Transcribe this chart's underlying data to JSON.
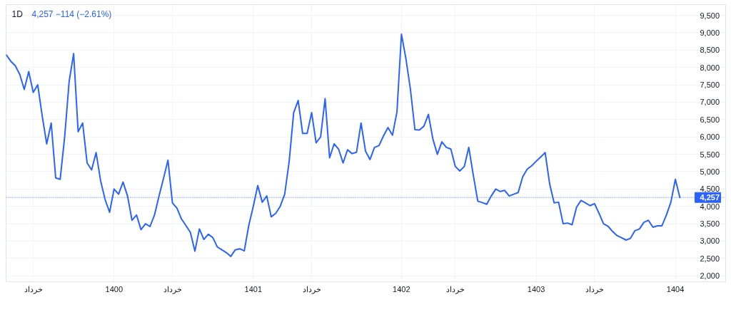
{
  "chart_data": {
    "type": "line",
    "title": "1D",
    "subtitle": "4,257  −114 (−2.61%)",
    "categories": [
      null,
      null,
      null,
      null,
      null,
      null,
      "خرداد",
      null,
      null,
      null,
      null,
      null,
      null,
      null,
      null,
      null,
      null,
      null,
      null,
      null,
      null,
      null,
      null,
      null,
      "1400",
      null,
      null,
      null,
      null,
      null,
      null,
      null,
      null,
      null,
      null,
      null,
      null,
      "خرداد",
      null,
      null,
      null,
      null,
      null,
      null,
      null,
      null,
      null,
      null,
      null,
      null,
      null,
      null,
      null,
      null,
      null,
      "1401",
      null,
      null,
      null,
      null,
      null,
      null,
      null,
      null,
      null,
      null,
      null,
      null,
      "خرداد",
      null,
      null,
      null,
      null,
      null,
      null,
      null,
      null,
      null,
      null,
      null,
      null,
      null,
      null,
      null,
      null,
      null,
      null,
      null,
      "1402",
      null,
      null,
      null,
      null,
      null,
      null,
      null,
      null,
      null,
      null,
      null,
      "خرداد",
      null,
      null,
      null,
      null,
      null,
      null,
      null,
      null,
      null,
      null,
      null,
      null,
      null,
      null,
      null,
      null,
      null,
      "1403",
      null,
      null,
      null,
      null,
      null,
      null,
      null,
      null,
      null,
      null,
      null,
      null,
      "خرداد",
      null,
      null,
      null,
      null,
      null,
      null,
      null,
      null,
      null,
      null,
      null,
      null,
      null,
      null,
      null,
      null,
      null,
      "1404",
      null
    ],
    "series": [
      {
        "color": "#2962ff",
        "values": [
          8360,
          8180,
          8050,
          7800,
          7370,
          7880,
          7280,
          7500,
          6600,
          5800,
          6400,
          4820,
          4780,
          6000,
          7600,
          8400,
          6150,
          6400,
          5250,
          5050,
          5550,
          4740,
          4200,
          3830,
          4500,
          4350,
          4700,
          4300,
          3600,
          3750,
          3330,
          3500,
          3420,
          3750,
          4290,
          4800,
          5330,
          4100,
          3950,
          3640,
          3450,
          3250,
          2710,
          3350,
          3050,
          3200,
          3100,
          2830,
          2750,
          2670,
          2560,
          2750,
          2780,
          2720,
          3450,
          4000,
          4600,
          4120,
          4300,
          3700,
          3800,
          4000,
          4350,
          5300,
          6700,
          7050,
          6100,
          6100,
          6700,
          5830,
          6000,
          7100,
          5400,
          5800,
          5650,
          5250,
          5630,
          5520,
          5560,
          6400,
          5590,
          5350,
          5700,
          5750,
          6030,
          6270,
          6050,
          6720,
          8960,
          8250,
          7370,
          6210,
          6200,
          6310,
          6650,
          5940,
          5500,
          5860,
          5700,
          5650,
          5150,
          5020,
          5150,
          5700,
          4900,
          4150,
          4110,
          4060,
          4300,
          4500,
          4430,
          4460,
          4300,
          4350,
          4400,
          4850,
          5070,
          5170,
          5300,
          5420,
          5550,
          4650,
          4100,
          4120,
          3500,
          3520,
          3470,
          3980,
          4170,
          4100,
          4020,
          4080,
          3800,
          3500,
          3430,
          3280,
          3160,
          3100,
          3030,
          3080,
          3300,
          3350,
          3540,
          3600,
          3400,
          3440,
          3440,
          3750,
          4120,
          4780,
          4257
        ]
      }
    ],
    "ylim": [
      1830,
      9810
    ],
    "yticks": [
      {
        "value": 2000,
        "label": "2,000"
      },
      {
        "value": 2500,
        "label": "2,500"
      },
      {
        "value": 3000,
        "label": "3,000"
      },
      {
        "value": 3500,
        "label": "3,500"
      },
      {
        "value": 4000,
        "label": "4,000"
      },
      {
        "value": 4500,
        "label": "4,500"
      },
      {
        "value": 5000,
        "label": "5,000"
      },
      {
        "value": 5500,
        "label": "5,500"
      },
      {
        "value": 6000,
        "label": "6,000"
      },
      {
        "value": 6500,
        "label": "6,500"
      },
      {
        "value": 7000,
        "label": "7,000"
      },
      {
        "value": 7500,
        "label": "7,500"
      },
      {
        "value": 8000,
        "label": "8,000"
      },
      {
        "value": 8500,
        "label": "8,500"
      },
      {
        "value": 9000,
        "label": "9,000"
      },
      {
        "value": 9500,
        "label": "9,500"
      }
    ],
    "ref_lines": [
      {
        "axis": "y",
        "value": 4257,
        "label": "4,257",
        "color": "#2962ff",
        "line_style": "dotted"
      }
    ],
    "grid": true,
    "line_style": "solid"
  }
}
